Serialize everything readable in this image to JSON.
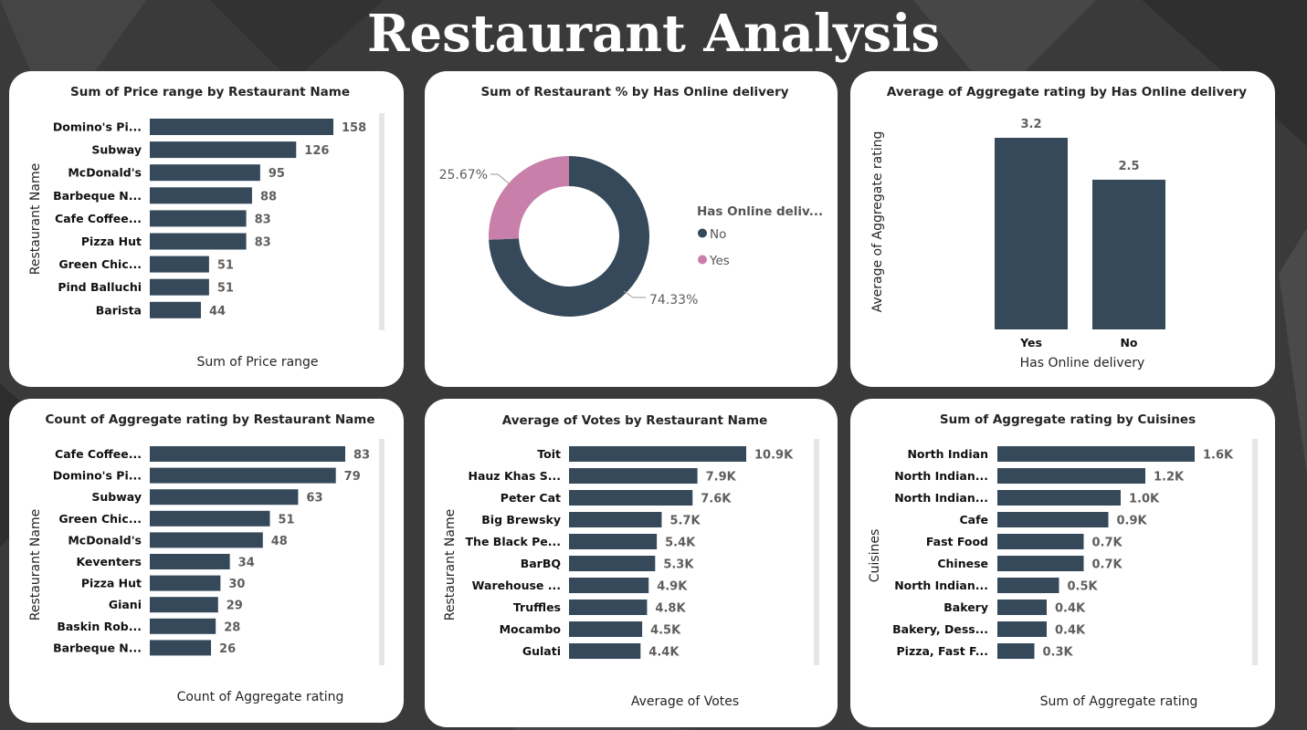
{
  "page": {
    "title": "Restaurant Analysis"
  },
  "colors": {
    "bar": "#35495a",
    "donut_no": "#35495a",
    "donut_yes": "#c87fa9",
    "card": "#ffffff",
    "background": "#3a3a3a"
  },
  "charts": [
    {
      "type": "bar",
      "orientation": "horizontal",
      "title": "Sum of Price range by Restaurant Name",
      "xlabel": "Sum of Price range",
      "ylabel": "Restaurant Name",
      "categories": [
        "Domino's Pi...",
        "Subway",
        "McDonald's",
        "Barbeque N...",
        "Cafe Coffee...",
        "Pizza Hut",
        "Green Chic...",
        "Pind Balluchi",
        "Barista"
      ],
      "values": [
        158,
        126,
        95,
        88,
        83,
        83,
        51,
        51,
        44
      ],
      "labels": [
        "158",
        "126",
        "95",
        "88",
        "83",
        "83",
        "51",
        "51",
        "44"
      ]
    },
    {
      "type": "pie",
      "variant": "donut",
      "title": "Sum of Restaurant % by Has Online delivery",
      "legend_title": "Has Online deliv...",
      "slices": [
        {
          "name": "No",
          "value": 74.33,
          "label": "74.33%",
          "color": "#35495a"
        },
        {
          "name": "Yes",
          "value": 25.67,
          "label": "25.67%",
          "color": "#c87fa9"
        }
      ]
    },
    {
      "type": "bar",
      "orientation": "vertical",
      "title": "Average of Aggregate rating by Has Online delivery",
      "xlabel": "Has Online delivery",
      "ylabel": "Average of Aggregate rating",
      "categories": [
        "Yes",
        "No"
      ],
      "values": [
        3.2,
        2.5
      ],
      "labels": [
        "3.2",
        "2.5"
      ]
    },
    {
      "type": "bar",
      "orientation": "horizontal",
      "title": "Count of Aggregate rating by Restaurant Name",
      "xlabel": "Count of Aggregate rating",
      "ylabel": "Restaurant Name",
      "categories": [
        "Cafe Coffee...",
        "Domino's Pi...",
        "Subway",
        "Green Chic...",
        "McDonald's",
        "Keventers",
        "Pizza Hut",
        "Giani",
        "Baskin Rob...",
        "Barbeque N..."
      ],
      "values": [
        83,
        79,
        63,
        51,
        48,
        34,
        30,
        29,
        28,
        26
      ],
      "labels": [
        "83",
        "79",
        "63",
        "51",
        "48",
        "34",
        "30",
        "29",
        "28",
        "26"
      ]
    },
    {
      "type": "bar",
      "orientation": "horizontal",
      "title": "Average of Votes by Restaurant Name",
      "xlabel": "Average of Votes",
      "ylabel": "Restaurant Name",
      "categories": [
        "Toit",
        "Hauz Khas S...",
        "Peter Cat",
        "Big Brewsky",
        "The Black Pe...",
        "BarBQ",
        "Warehouse ...",
        "Truffles",
        "Mocambo",
        "Gulati"
      ],
      "values": [
        10900,
        7900,
        7600,
        5700,
        5400,
        5300,
        4900,
        4800,
        4500,
        4400
      ],
      "labels": [
        "10.9K",
        "7.9K",
        "7.6K",
        "5.7K",
        "5.4K",
        "5.3K",
        "4.9K",
        "4.8K",
        "4.5K",
        "4.4K"
      ]
    },
    {
      "type": "bar",
      "orientation": "horizontal",
      "title": "Sum of Aggregate rating by Cuisines",
      "xlabel": "Sum of Aggregate rating",
      "ylabel": "Cuisines",
      "categories": [
        "North Indian",
        "North Indian...",
        "North Indian...",
        "Cafe",
        "Fast Food",
        "Chinese",
        "North Indian...",
        "Bakery",
        "Bakery, Dess...",
        "Pizza, Fast F..."
      ],
      "values": [
        1600,
        1200,
        1000,
        900,
        700,
        700,
        500,
        400,
        400,
        300
      ],
      "labels": [
        "1.6K",
        "1.2K",
        "1.0K",
        "0.9K",
        "0.7K",
        "0.7K",
        "0.5K",
        "0.4K",
        "0.4K",
        "0.3K"
      ]
    }
  ]
}
